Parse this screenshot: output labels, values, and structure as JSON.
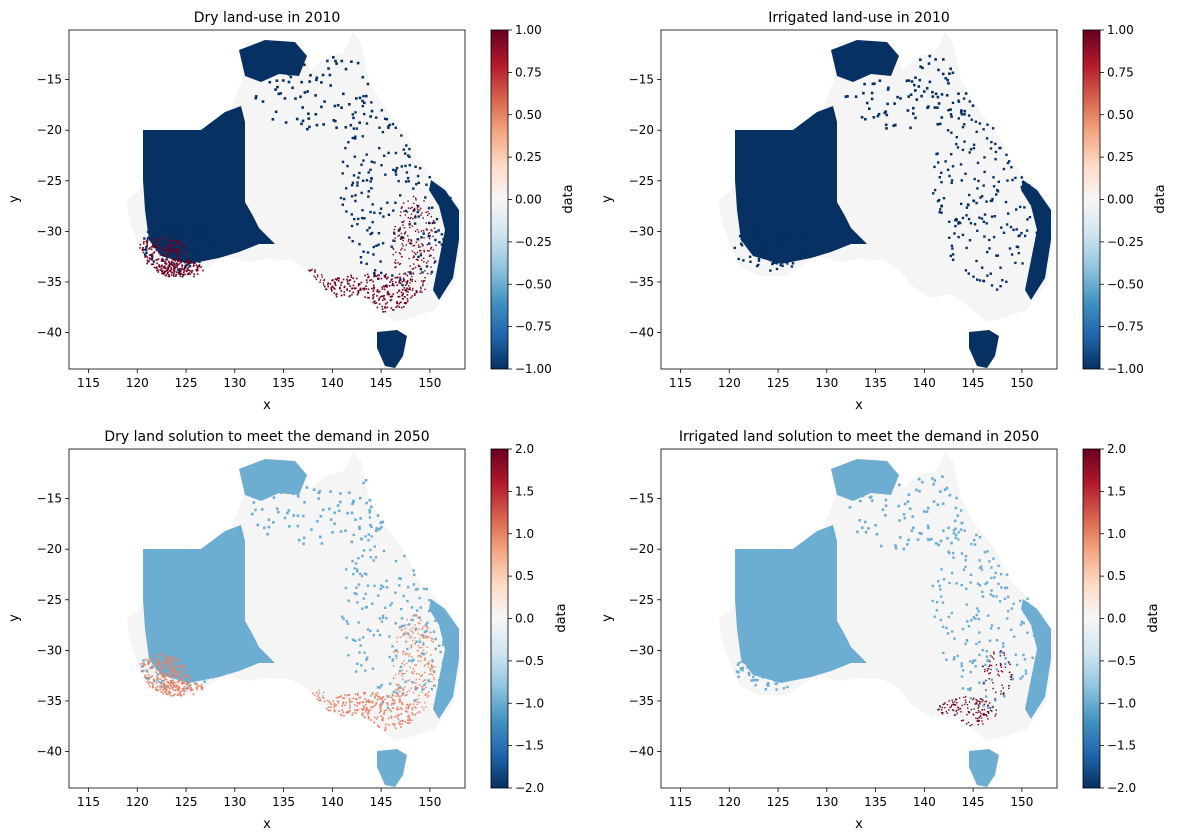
{
  "chart_data": [
    {
      "type": "heatmap",
      "title": "Dry land-use in 2010",
      "xlabel": "x",
      "ylabel": "y",
      "xlim": [
        113,
        153.6
      ],
      "ylim": [
        -43.6,
        -10.1
      ],
      "xticks": [
        "115",
        "120",
        "125",
        "130",
        "135",
        "140",
        "145",
        "150"
      ],
      "yticks": [
        "−15",
        "−20",
        "−25",
        "−30",
        "−35",
        "−40"
      ],
      "colorbar": {
        "label": "data",
        "range": [
          -1,
          1
        ],
        "cmap": "RdBu_r",
        "ticks": [
          "1.00",
          "0.75",
          "0.50",
          "0.25",
          "0.00",
          "−0.25",
          "−0.50",
          "−0.75",
          "−1.00"
        ]
      },
      "value_regions": [
        {
          "value": -1,
          "region": "central/western interior, northern coasts, Tasmania, coastal fringe"
        },
        {
          "value": 0,
          "region": "eastern and northern mainland"
        },
        {
          "value": 1,
          "region": "south-west WA and south-east wheat belts"
        }
      ]
    },
    {
      "type": "heatmap",
      "title": "Irrigated land-use in 2010",
      "xlabel": "x",
      "ylabel": "y",
      "xlim": [
        113,
        153.6
      ],
      "ylim": [
        -43.6,
        -10.1
      ],
      "xticks": [
        "115",
        "120",
        "125",
        "130",
        "135",
        "140",
        "145",
        "150"
      ],
      "yticks": [
        "−15",
        "−20",
        "−25",
        "−30",
        "−35",
        "−40"
      ],
      "colorbar": {
        "label": "data",
        "range": [
          -1,
          1
        ],
        "cmap": "RdBu_r",
        "ticks": [
          "1.00",
          "0.75",
          "0.50",
          "0.25",
          "0.00",
          "−0.25",
          "−0.50",
          "−0.75",
          "−1.00"
        ]
      },
      "value_regions": [
        {
          "value": -1,
          "region": "central/western interior, northern coasts, Tasmania, coastal fringe"
        },
        {
          "value": 0,
          "region": "eastern and northern mainland, south-west"
        }
      ]
    },
    {
      "type": "heatmap",
      "title": "Dry land solution to meet the demand in 2050",
      "xlabel": "x",
      "ylabel": "y",
      "xlim": [
        113,
        153.6
      ],
      "ylim": [
        -43.6,
        -10.1
      ],
      "xticks": [
        "115",
        "120",
        "125",
        "130",
        "135",
        "140",
        "145",
        "150"
      ],
      "yticks": [
        "−15",
        "−20",
        "−25",
        "−30",
        "−35",
        "−40"
      ],
      "colorbar": {
        "label": "data",
        "range": [
          -2,
          2
        ],
        "cmap": "RdBu_r",
        "ticks": [
          "2.0",
          "1.5",
          "1.0",
          "0.5",
          "0.0",
          "−0.5",
          "−1.0",
          "−1.5",
          "−2.0"
        ]
      },
      "value_regions": [
        {
          "value": -1,
          "region": "central/western interior, northern coasts, Tasmania, coastal fringe"
        },
        {
          "value": 0,
          "region": "eastern and northern mainland"
        },
        {
          "value": 1,
          "region": "south-west WA and south-east wheat belts"
        }
      ]
    },
    {
      "type": "heatmap",
      "title": "Irrigated land solution to meet the demand in 2050",
      "xlabel": "x",
      "ylabel": "y",
      "xlim": [
        113,
        153.6
      ],
      "ylim": [
        -43.6,
        -10.1
      ],
      "xticks": [
        "115",
        "120",
        "125",
        "130",
        "135",
        "140",
        "145",
        "150"
      ],
      "yticks": [
        "−15",
        "−20",
        "−25",
        "−30",
        "−35",
        "−40"
      ],
      "colorbar": {
        "label": "data",
        "range": [
          -2,
          2
        ],
        "cmap": "RdBu_r",
        "ticks": [
          "2.0",
          "1.5",
          "1.0",
          "0.5",
          "0.0",
          "−0.5",
          "−1.0",
          "−1.5",
          "−2.0"
        ]
      },
      "value_regions": [
        {
          "value": -1,
          "region": "central/western interior, northern coasts, Tasmania, coastal fringe"
        },
        {
          "value": 0,
          "region": "eastern and northern mainland, south-west"
        },
        {
          "value": 2,
          "region": "scattered irrigated pixels in the Murray-Darling basin"
        }
      ]
    }
  ],
  "colors": {
    "neg_one_small_range": "#073163",
    "neg_one_large_range": "#6cadd1",
    "zero": "#f5f5f5",
    "pos_one_small_range": "#6c0020",
    "pos_one_large_range": "#e58267",
    "pos_two_large_range": "#6c0020"
  }
}
